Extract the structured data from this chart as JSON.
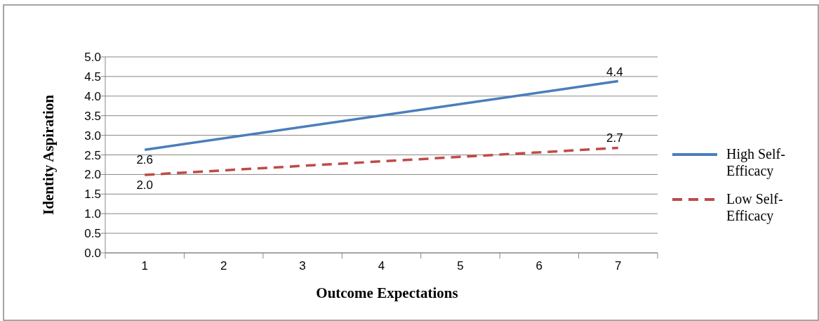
{
  "chart_data": {
    "type": "line",
    "xlabel": "Outcome Expectations",
    "ylabel": "Identity Aspiration",
    "categories": [
      "1",
      "2",
      "3",
      "4",
      "5",
      "6",
      "7"
    ],
    "series": [
      {
        "name": "High Self-Efficacy",
        "color": "#4a7ebb",
        "x": [
          "1",
          "7"
        ],
        "values": [
          2.63,
          4.38
        ],
        "value_labels": [
          "2.6",
          "4.4"
        ],
        "line_style": "solid"
      },
      {
        "name": "Low Self-Efficacy",
        "color": "#be4b48",
        "x": [
          "1",
          "7"
        ],
        "values": [
          1.99,
          2.68
        ],
        "value_labels": [
          "2.0",
          "2.7"
        ],
        "line_style": "dashed"
      }
    ],
    "ylim": [
      0,
      5
    ],
    "yticks": [
      {
        "value": 0,
        "label": "0.0"
      },
      {
        "value": 0.5,
        "label": "0.5"
      },
      {
        "value": 1,
        "label": "1.0"
      },
      {
        "value": 1.5,
        "label": "1.5"
      },
      {
        "value": 2,
        "label": "2.0"
      },
      {
        "value": 2.5,
        "label": "2.5"
      },
      {
        "value": 3,
        "label": "3.0"
      },
      {
        "value": 3.5,
        "label": "3.5"
      },
      {
        "value": 4,
        "label": "4.0"
      },
      {
        "value": 4.5,
        "label": "4.5"
      },
      {
        "value": 5,
        "label": "5.0"
      }
    ],
    "grid": "y",
    "legend": "right",
    "marker": "none"
  }
}
